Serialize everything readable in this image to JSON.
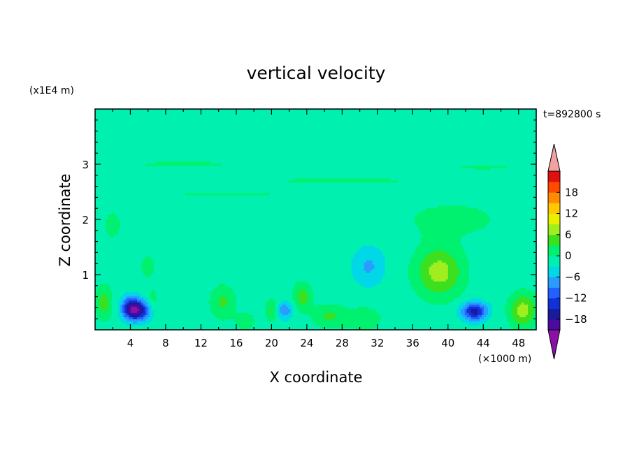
{
  "chart_data": {
    "type": "heatmap",
    "title": "vertical velocity",
    "xlabel": "X coordinate",
    "ylabel": "Z coordinate",
    "x_unit": "(×1000 m)",
    "y_unit": "(x1E4 m)",
    "time_label": "t=892800 s",
    "xlim": [
      0,
      50
    ],
    "ylim": [
      0,
      4
    ],
    "x_ticks": [
      4,
      8,
      12,
      16,
      20,
      24,
      28,
      32,
      36,
      40,
      44,
      48
    ],
    "y_ticks": [
      1,
      2,
      3
    ],
    "colorbar": {
      "ticks": [
        18,
        12,
        6,
        0,
        -6,
        -12,
        -18
      ],
      "levels": [
        -21,
        -18,
        -15,
        -12,
        -9,
        -6,
        -3,
        0,
        3,
        6,
        9,
        12,
        15,
        18,
        21
      ],
      "colors": [
        "#4b0aa0",
        "#1a1a9a",
        "#1030d8",
        "#2260ff",
        "#2a9cff",
        "#00d8e8",
        "#00f0b0",
        "#00f070",
        "#3ce01e",
        "#a0ee20",
        "#e8f000",
        "#ffc800",
        "#ff8c00",
        "#ff4a00",
        "#e01010"
      ],
      "under_color": "#8a10a8",
      "over_color": "#f4a0a0"
    },
    "background_value": -1.5,
    "features": [
      {
        "kind": "downdraft",
        "x": 5.0,
        "z": 0.35,
        "peak": -15,
        "sx": 1.3,
        "sz": 0.18
      },
      {
        "kind": "downdraft",
        "x": 4.0,
        "z": 0.4,
        "peak": -12,
        "sx": 1.0,
        "sz": 0.2
      },
      {
        "kind": "downdraft",
        "x": 43.0,
        "z": 0.33,
        "peak": -15,
        "sx": 1.4,
        "sz": 0.16
      },
      {
        "kind": "downdraft",
        "x": 21.5,
        "z": 0.35,
        "peak": -7,
        "sx": 0.9,
        "sz": 0.15
      },
      {
        "kind": "downdraft",
        "x": 31.0,
        "z": 1.15,
        "peak": -5,
        "sx": 1.8,
        "sz": 0.35
      },
      {
        "kind": "updraft",
        "x": 39.0,
        "z": 1.05,
        "peak": 9,
        "sx": 2.6,
        "sz": 0.45
      },
      {
        "kind": "updraft",
        "x": 48.5,
        "z": 0.35,
        "peak": 9,
        "sx": 1.5,
        "sz": 0.3
      },
      {
        "kind": "updraft",
        "x": 1.0,
        "z": 0.5,
        "peak": 6,
        "sx": 0.9,
        "sz": 0.3
      },
      {
        "kind": "updraft",
        "x": 23.5,
        "z": 0.6,
        "peak": 6,
        "sx": 1.0,
        "sz": 0.25
      },
      {
        "kind": "updraft",
        "x": 14.5,
        "z": 0.5,
        "peak": 5,
        "sx": 1.4,
        "sz": 0.3
      },
      {
        "kind": "updraft",
        "x": 20.0,
        "z": 0.35,
        "peak": 5,
        "sx": 0.7,
        "sz": 0.2
      },
      {
        "kind": "updraft",
        "x": 26.5,
        "z": 0.25,
        "peak": 5,
        "sx": 1.8,
        "sz": 0.2
      },
      {
        "kind": "updraft",
        "x": 30.5,
        "z": 0.2,
        "peak": 3,
        "sx": 2.2,
        "sz": 0.25
      },
      {
        "kind": "updraft",
        "x": 17.0,
        "z": 0.15,
        "peak": 4,
        "sx": 1.0,
        "sz": 0.15
      },
      {
        "kind": "updraft",
        "x": 6.5,
        "z": 0.5,
        "peak": 3,
        "sx": 0.8,
        "sz": 0.25
      },
      {
        "kind": "updraft",
        "x": 40.5,
        "z": 2.0,
        "peak": 2.5,
        "sx": 6.0,
        "sz": 0.35
      },
      {
        "kind": "updraft",
        "x": 2.0,
        "z": 1.9,
        "peak": 2.0,
        "sx": 1.5,
        "sz": 0.4
      },
      {
        "kind": "updraft",
        "x": 6.0,
        "z": 1.15,
        "peak": 2.5,
        "sx": 1.0,
        "sz": 0.25
      },
      {
        "kind": "layer",
        "x": 10.0,
        "z": 3.0,
        "peak": 2.0,
        "sx": 8.0,
        "sz": 0.08
      },
      {
        "kind": "layer",
        "x": 28.0,
        "z": 2.7,
        "peak": 2.0,
        "sx": 12.0,
        "sz": 0.08
      },
      {
        "kind": "layer",
        "x": 44.0,
        "z": 2.95,
        "peak": 2.0,
        "sx": 5.0,
        "sz": 0.07
      },
      {
        "kind": "layer",
        "x": 15.0,
        "z": 2.45,
        "peak": 2.0,
        "sx": 9.0,
        "sz": 0.05
      }
    ]
  }
}
